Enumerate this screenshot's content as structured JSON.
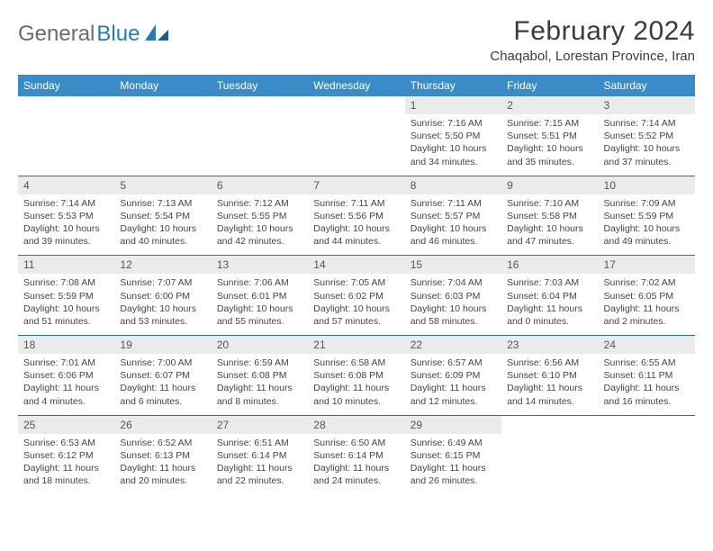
{
  "brand": {
    "part1": "General",
    "part2": "Blue"
  },
  "title": "February 2024",
  "location": "Chaqabol, Lorestan Province, Iran",
  "colors": {
    "header_bg": "#3b8bc6",
    "header_text": "#ffffff",
    "daynum_bg": "#ebebeb",
    "sep": "#2a6fa8",
    "brand_gray": "#6b6b6b",
    "brand_blue": "#2a79b8"
  },
  "dow": [
    "Sunday",
    "Monday",
    "Tuesday",
    "Wednesday",
    "Thursday",
    "Friday",
    "Saturday"
  ],
  "weeks": [
    [
      null,
      null,
      null,
      null,
      {
        "n": "1",
        "sr": "Sunrise: 7:16 AM",
        "ss": "Sunset: 5:50 PM",
        "dl": "Daylight: 10 hours and 34 minutes."
      },
      {
        "n": "2",
        "sr": "Sunrise: 7:15 AM",
        "ss": "Sunset: 5:51 PM",
        "dl": "Daylight: 10 hours and 35 minutes."
      },
      {
        "n": "3",
        "sr": "Sunrise: 7:14 AM",
        "ss": "Sunset: 5:52 PM",
        "dl": "Daylight: 10 hours and 37 minutes."
      }
    ],
    [
      {
        "n": "4",
        "sr": "Sunrise: 7:14 AM",
        "ss": "Sunset: 5:53 PM",
        "dl": "Daylight: 10 hours and 39 minutes."
      },
      {
        "n": "5",
        "sr": "Sunrise: 7:13 AM",
        "ss": "Sunset: 5:54 PM",
        "dl": "Daylight: 10 hours and 40 minutes."
      },
      {
        "n": "6",
        "sr": "Sunrise: 7:12 AM",
        "ss": "Sunset: 5:55 PM",
        "dl": "Daylight: 10 hours and 42 minutes."
      },
      {
        "n": "7",
        "sr": "Sunrise: 7:11 AM",
        "ss": "Sunset: 5:56 PM",
        "dl": "Daylight: 10 hours and 44 minutes."
      },
      {
        "n": "8",
        "sr": "Sunrise: 7:11 AM",
        "ss": "Sunset: 5:57 PM",
        "dl": "Daylight: 10 hours and 46 minutes."
      },
      {
        "n": "9",
        "sr": "Sunrise: 7:10 AM",
        "ss": "Sunset: 5:58 PM",
        "dl": "Daylight: 10 hours and 47 minutes."
      },
      {
        "n": "10",
        "sr": "Sunrise: 7:09 AM",
        "ss": "Sunset: 5:59 PM",
        "dl": "Daylight: 10 hours and 49 minutes."
      }
    ],
    [
      {
        "n": "11",
        "sr": "Sunrise: 7:08 AM",
        "ss": "Sunset: 5:59 PM",
        "dl": "Daylight: 10 hours and 51 minutes."
      },
      {
        "n": "12",
        "sr": "Sunrise: 7:07 AM",
        "ss": "Sunset: 6:00 PM",
        "dl": "Daylight: 10 hours and 53 minutes."
      },
      {
        "n": "13",
        "sr": "Sunrise: 7:06 AM",
        "ss": "Sunset: 6:01 PM",
        "dl": "Daylight: 10 hours and 55 minutes."
      },
      {
        "n": "14",
        "sr": "Sunrise: 7:05 AM",
        "ss": "Sunset: 6:02 PM",
        "dl": "Daylight: 10 hours and 57 minutes."
      },
      {
        "n": "15",
        "sr": "Sunrise: 7:04 AM",
        "ss": "Sunset: 6:03 PM",
        "dl": "Daylight: 10 hours and 58 minutes."
      },
      {
        "n": "16",
        "sr": "Sunrise: 7:03 AM",
        "ss": "Sunset: 6:04 PM",
        "dl": "Daylight: 11 hours and 0 minutes."
      },
      {
        "n": "17",
        "sr": "Sunrise: 7:02 AM",
        "ss": "Sunset: 6:05 PM",
        "dl": "Daylight: 11 hours and 2 minutes."
      }
    ],
    [
      {
        "n": "18",
        "sr": "Sunrise: 7:01 AM",
        "ss": "Sunset: 6:06 PM",
        "dl": "Daylight: 11 hours and 4 minutes."
      },
      {
        "n": "19",
        "sr": "Sunrise: 7:00 AM",
        "ss": "Sunset: 6:07 PM",
        "dl": "Daylight: 11 hours and 6 minutes."
      },
      {
        "n": "20",
        "sr": "Sunrise: 6:59 AM",
        "ss": "Sunset: 6:08 PM",
        "dl": "Daylight: 11 hours and 8 minutes."
      },
      {
        "n": "21",
        "sr": "Sunrise: 6:58 AM",
        "ss": "Sunset: 6:08 PM",
        "dl": "Daylight: 11 hours and 10 minutes."
      },
      {
        "n": "22",
        "sr": "Sunrise: 6:57 AM",
        "ss": "Sunset: 6:09 PM",
        "dl": "Daylight: 11 hours and 12 minutes."
      },
      {
        "n": "23",
        "sr": "Sunrise: 6:56 AM",
        "ss": "Sunset: 6:10 PM",
        "dl": "Daylight: 11 hours and 14 minutes."
      },
      {
        "n": "24",
        "sr": "Sunrise: 6:55 AM",
        "ss": "Sunset: 6:11 PM",
        "dl": "Daylight: 11 hours and 16 minutes."
      }
    ],
    [
      {
        "n": "25",
        "sr": "Sunrise: 6:53 AM",
        "ss": "Sunset: 6:12 PM",
        "dl": "Daylight: 11 hours and 18 minutes."
      },
      {
        "n": "26",
        "sr": "Sunrise: 6:52 AM",
        "ss": "Sunset: 6:13 PM",
        "dl": "Daylight: 11 hours and 20 minutes."
      },
      {
        "n": "27",
        "sr": "Sunrise: 6:51 AM",
        "ss": "Sunset: 6:14 PM",
        "dl": "Daylight: 11 hours and 22 minutes."
      },
      {
        "n": "28",
        "sr": "Sunrise: 6:50 AM",
        "ss": "Sunset: 6:14 PM",
        "dl": "Daylight: 11 hours and 24 minutes."
      },
      {
        "n": "29",
        "sr": "Sunrise: 6:49 AM",
        "ss": "Sunset: 6:15 PM",
        "dl": "Daylight: 11 hours and 26 minutes."
      },
      null,
      null
    ]
  ]
}
